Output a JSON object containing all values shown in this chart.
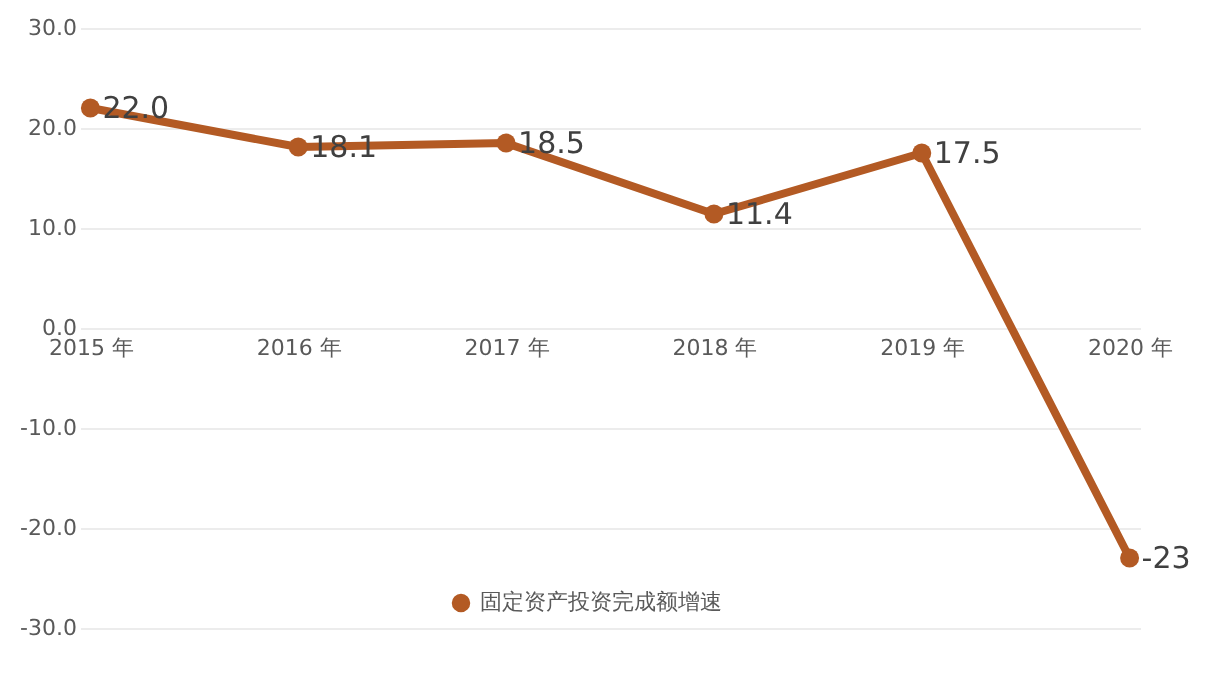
{
  "chart_data": {
    "type": "line",
    "categories": [
      "2015 年",
      "2016 年",
      "2017 年",
      "2018 年",
      "2019 年",
      "2020 年"
    ],
    "series": [
      {
        "name": "固定资产投资完成额增速",
        "color": "#b35a24",
        "values": [
          22.0,
          18.1,
          18.5,
          11.4,
          17.5,
          -23
        ]
      }
    ],
    "value_labels": [
      "22.0",
      "18.1",
      "18.5",
      "11.4",
      "17.5",
      "-23"
    ],
    "ylim": [
      -30,
      30
    ],
    "yticks": [
      {
        "value": -30,
        "label": "-30.0"
      },
      {
        "value": -20,
        "label": "-20.0"
      },
      {
        "value": -10,
        "label": "-10.0"
      },
      {
        "value": 0,
        "label": "0.0"
      },
      {
        "value": 10,
        "label": "10.0"
      },
      {
        "value": 20,
        "label": "20.0"
      },
      {
        "value": 30,
        "label": "30.0"
      }
    ],
    "grid": "y",
    "legend": "bottom",
    "marker": "circle",
    "line_style": "solid"
  }
}
